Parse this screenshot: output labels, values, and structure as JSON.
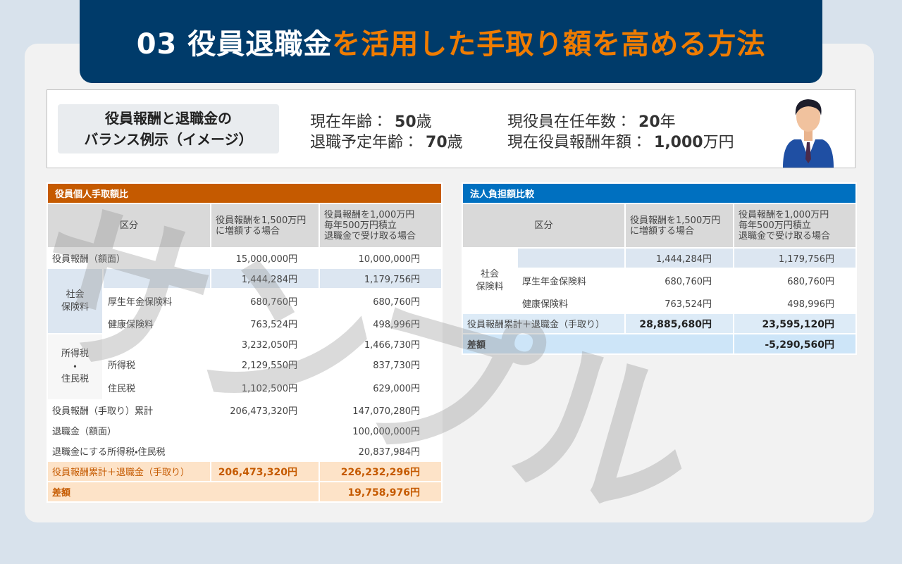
{
  "header": {
    "title_main": "03 役員退職金",
    "title_accent": "を活用した手取り額を高める方法"
  },
  "profile": {
    "label": [
      "役員報酬と退職金の",
      "バランス例示（イメージ）"
    ],
    "items": [
      {
        "key": "現在年齢：",
        "value": "50",
        "unit": "歳"
      },
      {
        "key": "退職予定年齢：",
        "value": "70",
        "unit": "歳"
      },
      {
        "key": "現役員在任年数：",
        "value": "20",
        "unit": "年"
      },
      {
        "key": "現在役員報酬年額：",
        "value": "1,000",
        "unit": "万円"
      }
    ]
  },
  "watermark": "サンプル",
  "personal_table": {
    "title": "役員個人手取額比",
    "header": {
      "category": "区分",
      "case_a": [
        "役員報酬を1,500万円",
        "に増額する場合"
      ],
      "case_b": [
        "役員報酬を1,000万円",
        "毎年500万円積立",
        "退職金で受け取る場合"
      ]
    },
    "rows": [
      {
        "label": "役員報酬（額面）",
        "a": "15,000,000円",
        "b": "10,000,000円"
      },
      {
        "group": [
          "社会",
          "保険料"
        ],
        "total": {
          "a": "1,444,284円",
          "b": "1,179,756円"
        },
        "items": [
          {
            "label": "厚生年金保険料",
            "a": "680,760円",
            "b": "680,760円"
          },
          {
            "label": "健康保険料",
            "a": "763,524円",
            "b": "498,996円"
          }
        ]
      },
      {
        "group": [
          "所得税",
          "・",
          "住民税"
        ],
        "total": {
          "a": "3,232,050円",
          "b": "1,466,730円"
        },
        "items": [
          {
            "label": "所得税",
            "a": "2,129,550円",
            "b": "837,730円"
          },
          {
            "label": "住民税",
            "a": "1,102,500円",
            "b": "629,000円"
          }
        ]
      },
      {
        "label": "役員報酬（手取り）累計",
        "a": "206,473,320円",
        "b": "147,070,280円"
      },
      {
        "label": "退職金（額面）",
        "b": "100,000,000円"
      },
      {
        "label": "退職金にする所得税・住民税",
        "b": "20,837,984円"
      },
      {
        "label": "役員報酬累計＋退職金（手取り）",
        "a": "206,473,320円",
        "b": "226,232,296円"
      },
      {
        "label": "差額",
        "b": "19,758,976円"
      }
    ]
  },
  "corporate_table": {
    "title": "法人負担額比較",
    "header": {
      "category": "区分",
      "case_a": [
        "役員報酬を1,500万円",
        "に増額する場合"
      ],
      "case_b": [
        "役員報酬を1,000万円",
        "毎年500万円積立",
        "退職金で受け取る場合"
      ]
    },
    "rows": [
      {
        "group": [
          "社会",
          "保険料"
        ],
        "total": {
          "a": "1,444,284円",
          "b": "1,179,756円"
        },
        "items": [
          {
            "label": "厚生年金保険料",
            "a": "680,760円",
            "b": "680,760円"
          },
          {
            "label": "健康保険料",
            "a": "763,524円",
            "b": "498,996円"
          }
        ]
      },
      {
        "label": "役員報酬累計＋退職金（手取り）",
        "a": "28,885,680円",
        "b": "23,595,120円"
      },
      {
        "label": "差額",
        "b": "-5,290,560円"
      }
    ]
  }
}
